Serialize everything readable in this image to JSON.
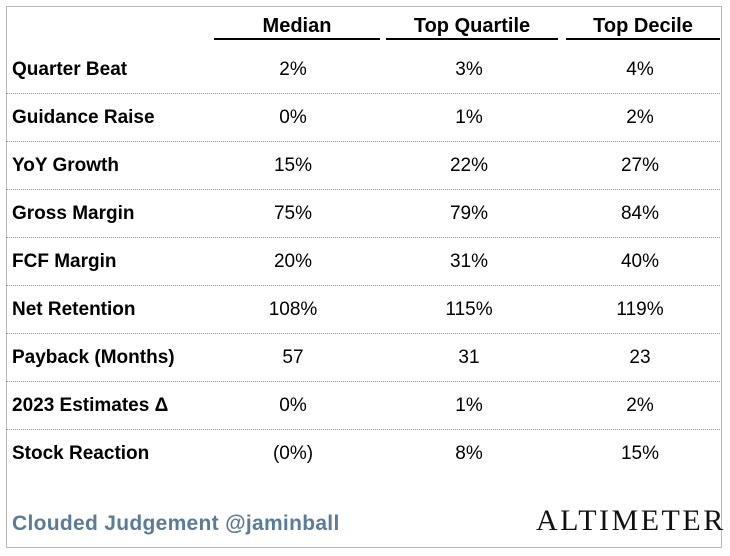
{
  "chart_data": {
    "type": "table",
    "columns": [
      "Median",
      "Top Quartile",
      "Top Decile"
    ],
    "rows": [
      {
        "label": "Quarter Beat",
        "values": [
          "2%",
          "3%",
          "4%"
        ]
      },
      {
        "label": "Guidance Raise",
        "values": [
          "0%",
          "1%",
          "2%"
        ]
      },
      {
        "label": "YoY Growth",
        "values": [
          "15%",
          "22%",
          "27%"
        ]
      },
      {
        "label": "Gross Margin",
        "values": [
          "75%",
          "79%",
          "84%"
        ]
      },
      {
        "label": "FCF Margin",
        "values": [
          "20%",
          "31%",
          "40%"
        ]
      },
      {
        "label": "Net Retention",
        "values": [
          "108%",
          "115%",
          "119%"
        ]
      },
      {
        "label": "Payback (Months)",
        "values": [
          "57",
          "31",
          "23"
        ]
      },
      {
        "label": "2023 Estimates Δ",
        "values": [
          "0%",
          "1%",
          "2%"
        ]
      },
      {
        "label": "Stock Reaction",
        "values": [
          "(0%)",
          "8%",
          "15%"
        ]
      }
    ]
  },
  "footer": {
    "credit": "Clouded Judgement @jaminball",
    "logo": "ALTIMETER",
    "credit_color": "#5a7c98"
  }
}
